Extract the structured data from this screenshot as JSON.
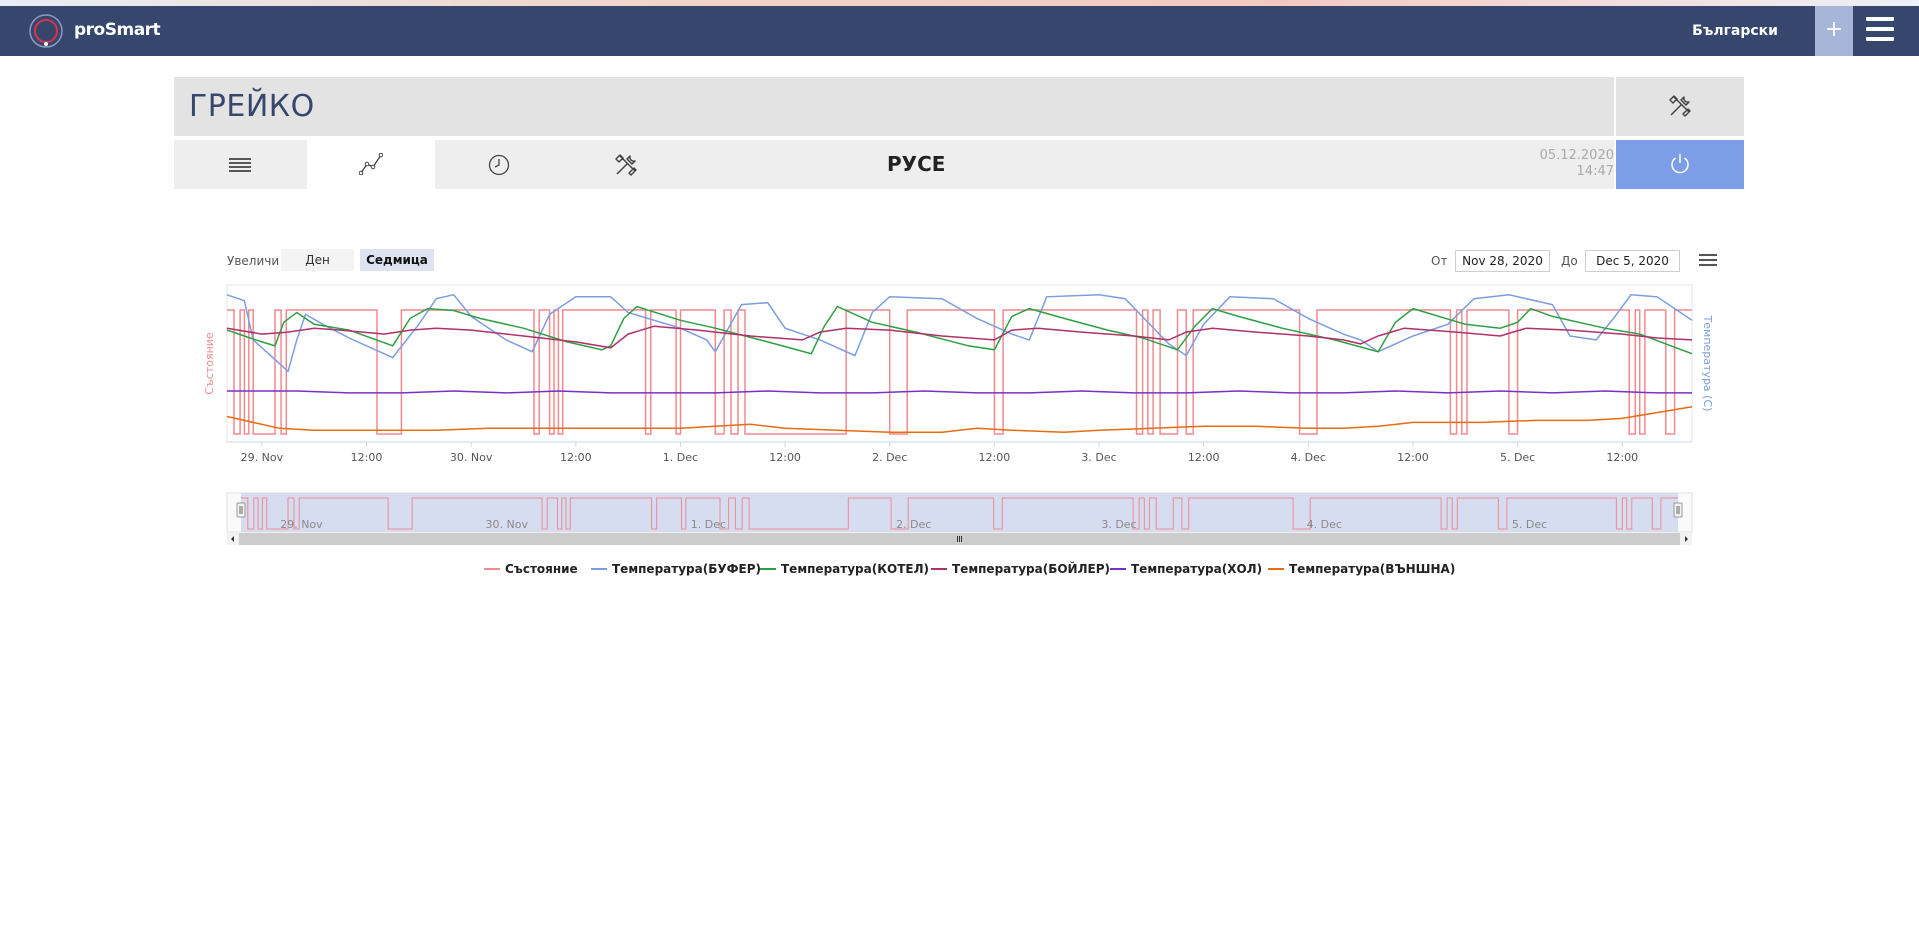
{
  "app": {
    "brand": "proSmart",
    "language": "Български"
  },
  "device": {
    "title": "ГРЕЙКО",
    "city": "РУСЕ",
    "date": "05.12.2020",
    "time": "14:47"
  },
  "tabs": [
    {
      "icon": "list-icon"
    },
    {
      "icon": "chart-icon",
      "active": true
    },
    {
      "icon": "clock-icon"
    },
    {
      "icon": "tools-icon"
    }
  ],
  "toolbar": {
    "zoom_label": "Увеличи",
    "zoom_day": "Ден",
    "zoom_week": "Седмица",
    "from_label": "От",
    "from_value": "Nov 28, 2020",
    "to_label": "До",
    "to_value": "Dec 5, 2020"
  },
  "colors": {
    "navbar": "#36466d",
    "accent": "#7e9de8",
    "state": "#f08a8f",
    "buffer": "#7b9ee0",
    "kotel": "#2ea043",
    "boiler": "#b03068",
    "hol": "#7b2fc9",
    "outside": "#e86c10"
  },
  "chart_data": {
    "type": "line",
    "title": "",
    "xlabel": "",
    "ylabel_left": "Състояние",
    "ylabel_right": "Температура (C)",
    "x_ticks": [
      "29. Nov",
      "12:00",
      "30. Nov",
      "12:00",
      "1. Dec",
      "12:00",
      "2. Dec",
      "12:00",
      "3. Dec",
      "12:00",
      "4. Dec",
      "12:00",
      "5. Dec",
      "12:00"
    ],
    "navigator_ticks": [
      "29. Nov",
      "30. Nov",
      "1. Dec",
      "2. Dec",
      "3. Dec",
      "4. Dec",
      "5. Dec"
    ],
    "x_range_hours": [
      -4,
      164
    ],
    "x_range_note": "hours from 29. Nov 00:00",
    "y_left_range": [
      0,
      1
    ],
    "y_right_range": [
      0,
      80
    ],
    "grid": false,
    "legend_position": "bottom",
    "series": [
      {
        "name": "Състояние",
        "axis": "left",
        "values": [
          [
            -4,
            1
          ],
          [
            -3.2,
            0
          ],
          [
            -2.5,
            1
          ],
          [
            -2,
            0
          ],
          [
            -1.5,
            1
          ],
          [
            -1.0,
            0
          ],
          [
            1.5,
            1
          ],
          [
            2.2,
            0
          ],
          [
            2.8,
            1
          ],
          [
            12,
            1
          ],
          [
            13.2,
            0
          ],
          [
            16,
            1
          ],
          [
            31.2,
            0
          ],
          [
            31.8,
            1
          ],
          [
            33,
            0
          ],
          [
            33.5,
            1
          ],
          [
            34,
            0
          ],
          [
            34.5,
            1
          ],
          [
            43,
            1
          ],
          [
            44,
            0
          ],
          [
            44.6,
            1
          ],
          [
            47.5,
            0
          ],
          [
            48,
            1
          ],
          [
            51,
            1
          ],
          [
            52,
            0
          ],
          [
            53,
            1
          ],
          [
            53.8,
            0
          ],
          [
            54.6,
            1
          ],
          [
            55.4,
            0
          ],
          [
            66,
            0
          ],
          [
            67,
            1
          ],
          [
            72,
            0
          ],
          [
            74,
            1
          ],
          [
            83.2,
            1
          ],
          [
            84,
            0
          ],
          [
            85,
            1
          ],
          [
            99.5,
            1
          ],
          [
            100.3,
            0
          ],
          [
            101,
            1
          ],
          [
            101.6,
            0
          ],
          [
            102.2,
            1
          ],
          [
            103,
            0
          ],
          [
            105,
            1
          ],
          [
            106,
            0
          ],
          [
            106.8,
            1
          ],
          [
            118,
            1
          ],
          [
            119,
            0
          ],
          [
            121,
            1
          ],
          [
            135.5,
            1
          ],
          [
            136.3,
            0
          ],
          [
            137,
            1
          ],
          [
            137.6,
            0
          ],
          [
            138.2,
            1
          ],
          [
            143,
            0
          ],
          [
            144,
            1
          ],
          [
            156,
            1
          ],
          [
            156.8,
            0
          ],
          [
            157.5,
            1
          ],
          [
            158,
            0
          ],
          [
            158.6,
            1
          ],
          [
            160,
            1
          ],
          [
            161,
            0
          ],
          [
            162,
            1
          ],
          [
            164,
            1
          ]
        ]
      },
      {
        "name": "Температура(БУФЕР)",
        "axis": "right",
        "values": [
          [
            -4,
            75
          ],
          [
            -2,
            72
          ],
          [
            -1,
            52
          ],
          [
            1,
            44
          ],
          [
            3,
            36
          ],
          [
            4,
            52
          ],
          [
            5,
            65
          ],
          [
            7,
            60
          ],
          [
            10,
            53
          ],
          [
            15,
            43
          ],
          [
            18,
            60
          ],
          [
            20,
            73
          ],
          [
            22,
            75
          ],
          [
            24,
            64
          ],
          [
            28,
            52
          ],
          [
            31,
            46
          ],
          [
            33,
            65
          ],
          [
            36,
            74
          ],
          [
            40,
            74
          ],
          [
            42,
            66
          ],
          [
            48,
            58
          ],
          [
            51,
            52
          ],
          [
            52,
            46
          ],
          [
            55,
            70
          ],
          [
            58,
            71
          ],
          [
            60,
            58
          ],
          [
            64,
            52
          ],
          [
            68,
            44
          ],
          [
            70,
            66
          ],
          [
            72,
            74
          ],
          [
            78,
            73
          ],
          [
            82,
            63
          ],
          [
            86,
            55
          ],
          [
            88,
            52
          ],
          [
            90,
            74
          ],
          [
            96,
            75
          ],
          [
            99,
            73
          ],
          [
            104,
            50
          ],
          [
            106,
            44
          ],
          [
            108,
            60
          ],
          [
            111,
            74
          ],
          [
            116,
            73
          ],
          [
            120,
            63
          ],
          [
            124,
            55
          ],
          [
            126,
            52
          ],
          [
            128,
            46
          ],
          [
            132,
            54
          ],
          [
            136,
            60
          ],
          [
            139,
            73
          ],
          [
            143,
            75
          ],
          [
            148,
            70
          ],
          [
            150,
            54
          ],
          [
            153,
            52
          ],
          [
            155,
            63
          ],
          [
            157,
            75
          ],
          [
            160,
            74
          ],
          [
            164,
            62
          ]
        ]
      },
      {
        "name": "Температура(КОТЕЛ)",
        "axis": "right",
        "values": [
          [
            -4,
            57
          ],
          [
            -2,
            54
          ],
          [
            0,
            51
          ],
          [
            1.5,
            49
          ],
          [
            2.5,
            61
          ],
          [
            4,
            66
          ],
          [
            6,
            60
          ],
          [
            10,
            57
          ],
          [
            15,
            49
          ],
          [
            17,
            63
          ],
          [
            19,
            68
          ],
          [
            22,
            67
          ],
          [
            25,
            63
          ],
          [
            30,
            58
          ],
          [
            35,
            51
          ],
          [
            39,
            47
          ],
          [
            40,
            49
          ],
          [
            41.5,
            63
          ],
          [
            43,
            69
          ],
          [
            48,
            62
          ],
          [
            52,
            58
          ],
          [
            58,
            51
          ],
          [
            63,
            45
          ],
          [
            64.5,
            59
          ],
          [
            66,
            69
          ],
          [
            70,
            61
          ],
          [
            75,
            56
          ],
          [
            81,
            49
          ],
          [
            84,
            47
          ],
          [
            86,
            64
          ],
          [
            88,
            68
          ],
          [
            92,
            63
          ],
          [
            97,
            57
          ],
          [
            101,
            53
          ],
          [
            105,
            47
          ],
          [
            107,
            59
          ],
          [
            109,
            68
          ],
          [
            112,
            64
          ],
          [
            117,
            58
          ],
          [
            123,
            52
          ],
          [
            128,
            46
          ],
          [
            130,
            61
          ],
          [
            132,
            68
          ],
          [
            138,
            60
          ],
          [
            142,
            58
          ],
          [
            144,
            61
          ],
          [
            145.5,
            68
          ],
          [
            148,
            64
          ],
          [
            154,
            58
          ],
          [
            158,
            55
          ],
          [
            161,
            50
          ],
          [
            164,
            45
          ]
        ]
      },
      {
        "name": "Температура(БОЙЛЕР)",
        "axis": "right",
        "values": [
          [
            -4,
            58
          ],
          [
            0,
            55
          ],
          [
            3,
            56
          ],
          [
            6,
            58
          ],
          [
            9,
            57
          ],
          [
            14,
            55
          ],
          [
            17,
            57
          ],
          [
            20,
            58
          ],
          [
            24,
            57
          ],
          [
            30,
            54
          ],
          [
            36,
            51
          ],
          [
            40,
            48
          ],
          [
            42,
            55
          ],
          [
            45,
            59
          ],
          [
            50,
            57
          ],
          [
            56,
            54
          ],
          [
            62,
            52
          ],
          [
            64,
            56
          ],
          [
            67,
            58
          ],
          [
            72,
            57
          ],
          [
            78,
            54
          ],
          [
            84,
            52
          ],
          [
            86,
            57
          ],
          [
            89,
            58
          ],
          [
            94,
            56
          ],
          [
            100,
            54
          ],
          [
            104,
            52
          ],
          [
            106,
            56
          ],
          [
            109,
            58
          ],
          [
            114,
            56
          ],
          [
            120,
            54
          ],
          [
            124,
            52
          ],
          [
            126,
            50
          ],
          [
            128,
            54
          ],
          [
            131,
            58
          ],
          [
            137,
            56
          ],
          [
            142,
            54
          ],
          [
            145,
            58
          ],
          [
            150,
            57
          ],
          [
            156,
            55
          ],
          [
            160,
            53
          ],
          [
            164,
            52
          ]
        ]
      },
      {
        "name": "Температура(ХОЛ)",
        "axis": "right",
        "values": [
          [
            -4,
            26
          ],
          [
            4,
            26
          ],
          [
            10,
            25
          ],
          [
            16,
            25
          ],
          [
            22,
            26
          ],
          [
            28,
            25
          ],
          [
            34,
            26
          ],
          [
            40,
            25
          ],
          [
            46,
            25
          ],
          [
            52,
            25
          ],
          [
            58,
            26
          ],
          [
            64,
            25
          ],
          [
            70,
            25
          ],
          [
            76,
            26
          ],
          [
            82,
            25
          ],
          [
            88,
            25
          ],
          [
            94,
            26
          ],
          [
            100,
            25
          ],
          [
            106,
            25
          ],
          [
            112,
            26
          ],
          [
            118,
            25
          ],
          [
            124,
            25
          ],
          [
            130,
            26
          ],
          [
            136,
            25
          ],
          [
            142,
            26
          ],
          [
            148,
            25
          ],
          [
            154,
            26
          ],
          [
            160,
            25
          ],
          [
            164,
            25
          ]
        ]
      },
      {
        "name": "Температура(ВЪНШНА)",
        "axis": "right",
        "values": [
          [
            -4,
            13
          ],
          [
            -1,
            10
          ],
          [
            2,
            7
          ],
          [
            6,
            6
          ],
          [
            12,
            6
          ],
          [
            20,
            6
          ],
          [
            26,
            7
          ],
          [
            34,
            7
          ],
          [
            40,
            7
          ],
          [
            48,
            7
          ],
          [
            52,
            8
          ],
          [
            56,
            9
          ],
          [
            60,
            7
          ],
          [
            66,
            6
          ],
          [
            72,
            5
          ],
          [
            78,
            5
          ],
          [
            82,
            7
          ],
          [
            86,
            6
          ],
          [
            92,
            5
          ],
          [
            96,
            6
          ],
          [
            102,
            7
          ],
          [
            108,
            8
          ],
          [
            114,
            8
          ],
          [
            120,
            7
          ],
          [
            124,
            7
          ],
          [
            128,
            8
          ],
          [
            132,
            10
          ],
          [
            136,
            10
          ],
          [
            140,
            10
          ],
          [
            146,
            11
          ],
          [
            152,
            11
          ],
          [
            156,
            12
          ],
          [
            160,
            15
          ],
          [
            164,
            18
          ]
        ]
      }
    ]
  }
}
